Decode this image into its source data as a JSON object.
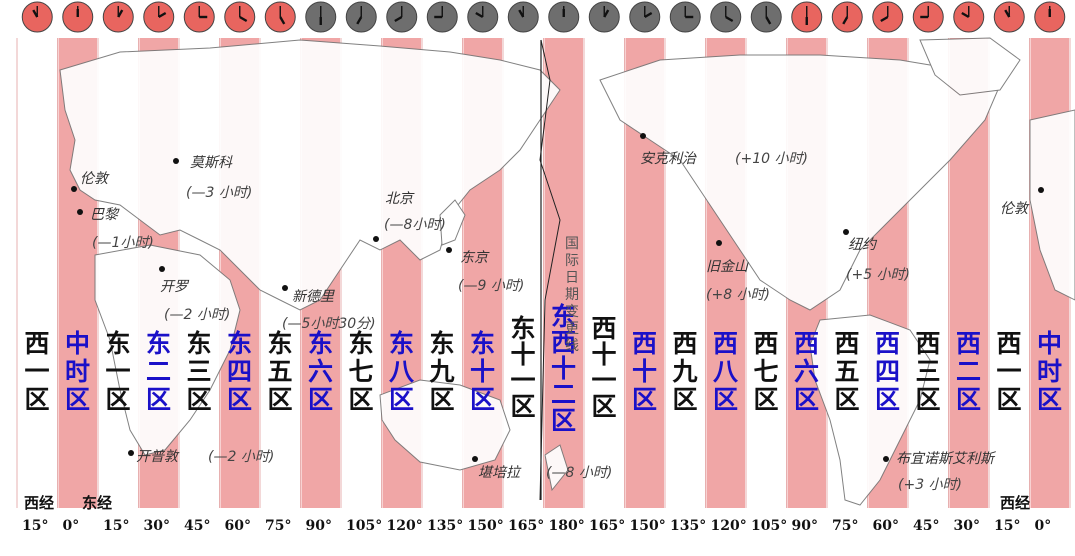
{
  "colors": {
    "zone_band": "#f0a6a6",
    "land": "#ffffff",
    "ocean": "#f7f7f7",
    "clock_day": "#e8655f",
    "clock_night": "#6e6e6e",
    "label_blue": "#1a10c8",
    "label_black": "#111111"
  },
  "clocks": [
    {
      "phase": "day",
      "hour": 11
    },
    {
      "phase": "day",
      "hour": 12
    },
    {
      "phase": "day",
      "hour": 1
    },
    {
      "phase": "day",
      "hour": 2
    },
    {
      "phase": "day",
      "hour": 3
    },
    {
      "phase": "day",
      "hour": 4
    },
    {
      "phase": "day",
      "hour": 5
    },
    {
      "phase": "night",
      "hour": 6
    },
    {
      "phase": "night",
      "hour": 7
    },
    {
      "phase": "night",
      "hour": 8
    },
    {
      "phase": "night",
      "hour": 9
    },
    {
      "phase": "night",
      "hour": 10
    },
    {
      "phase": "night",
      "hour": 11
    },
    {
      "phase": "night",
      "hour": 12
    },
    {
      "phase": "night",
      "hour": 1
    },
    {
      "phase": "night",
      "hour": 2
    },
    {
      "phase": "night",
      "hour": 3
    },
    {
      "phase": "night",
      "hour": 4
    },
    {
      "phase": "night",
      "hour": 5
    },
    {
      "phase": "day",
      "hour": 6
    },
    {
      "phase": "day",
      "hour": 7
    },
    {
      "phase": "day",
      "hour": 8
    },
    {
      "phase": "day",
      "hour": 9
    },
    {
      "phase": "day",
      "hour": 10
    },
    {
      "phase": "day",
      "hour": 11
    },
    {
      "phase": "day",
      "hour": 12
    }
  ],
  "zones": [
    {
      "label": "西一区",
      "highlight": false
    },
    {
      "label": "中时区",
      "highlight": true
    },
    {
      "label": "东一区",
      "highlight": false
    },
    {
      "label": "东二区",
      "highlight": true
    },
    {
      "label": "东三区",
      "highlight": false
    },
    {
      "label": "东四区",
      "highlight": true
    },
    {
      "label": "东五区",
      "highlight": false
    },
    {
      "label": "东六区",
      "highlight": true
    },
    {
      "label": "东七区",
      "highlight": false
    },
    {
      "label": "东八区",
      "highlight": true
    },
    {
      "label": "东九区",
      "highlight": false
    },
    {
      "label": "东十区",
      "highlight": true
    },
    {
      "label": "东十一区",
      "highlight": false
    },
    {
      "label": "东西十二区",
      "highlight": true
    },
    {
      "label": "西十一区",
      "highlight": false
    },
    {
      "label": "西十区",
      "highlight": true
    },
    {
      "label": "西九区",
      "highlight": false
    },
    {
      "label": "西八区",
      "highlight": true
    },
    {
      "label": "西七区",
      "highlight": false
    },
    {
      "label": "西六区",
      "highlight": true
    },
    {
      "label": "西五区",
      "highlight": false
    },
    {
      "label": "西四区",
      "highlight": true
    },
    {
      "label": "西三区",
      "highlight": false
    },
    {
      "label": "西二区",
      "highlight": true
    },
    {
      "label": "西一区",
      "highlight": false
    },
    {
      "label": "中时区",
      "highlight": true
    }
  ],
  "meridian_titles": {
    "west_left": "西经",
    "east_left": "东经",
    "west_right": "西经"
  },
  "meridians": [
    "15°",
    "0°",
    "15°",
    "30°",
    "45°",
    "60°",
    "75°",
    "90°",
    "105°",
    "120°",
    "135°",
    "150°",
    "165°",
    "180°",
    "165°",
    "150°",
    "135°",
    "120°",
    "105°",
    "90°",
    "75°",
    "60°",
    "45°",
    "30°",
    "15°",
    "0°"
  ],
  "cities": {
    "london_left": {
      "name": "伦敦"
    },
    "paris": {
      "name": "巴黎",
      "offset": "(—1小时)"
    },
    "moscow": {
      "name": "莫斯科",
      "offset": "(—3 小时)"
    },
    "cairo": {
      "name": "开罗",
      "offset": "(—2 小时)"
    },
    "new_delhi": {
      "name": "新德里",
      "offset": "(—5小时30分)"
    },
    "beijing": {
      "name": "北京",
      "offset": "(—8小时)"
    },
    "tokyo": {
      "name": "东京",
      "offset": "(—9 小时)"
    },
    "cape_town": {
      "name": "开普敦",
      "offset": "(—2 小时)"
    },
    "canberra": {
      "name": "堪培拉",
      "offset": "(—8 小时)"
    },
    "anchorage": {
      "name": "安克利治",
      "offset": "(+10 小时)"
    },
    "san_francisco": {
      "name": "旧金山",
      "offset": "(+8 小时)"
    },
    "new_york": {
      "name": "纽约",
      "offset": "(+5 小时)"
    },
    "buenos_aires": {
      "name": "布宜诺斯艾利斯",
      "offset": "(+3 小时)"
    },
    "london_right": {
      "name": "伦敦"
    }
  },
  "date_line_label": [
    "国",
    "际",
    "日",
    "期",
    "变",
    "更",
    "线"
  ]
}
